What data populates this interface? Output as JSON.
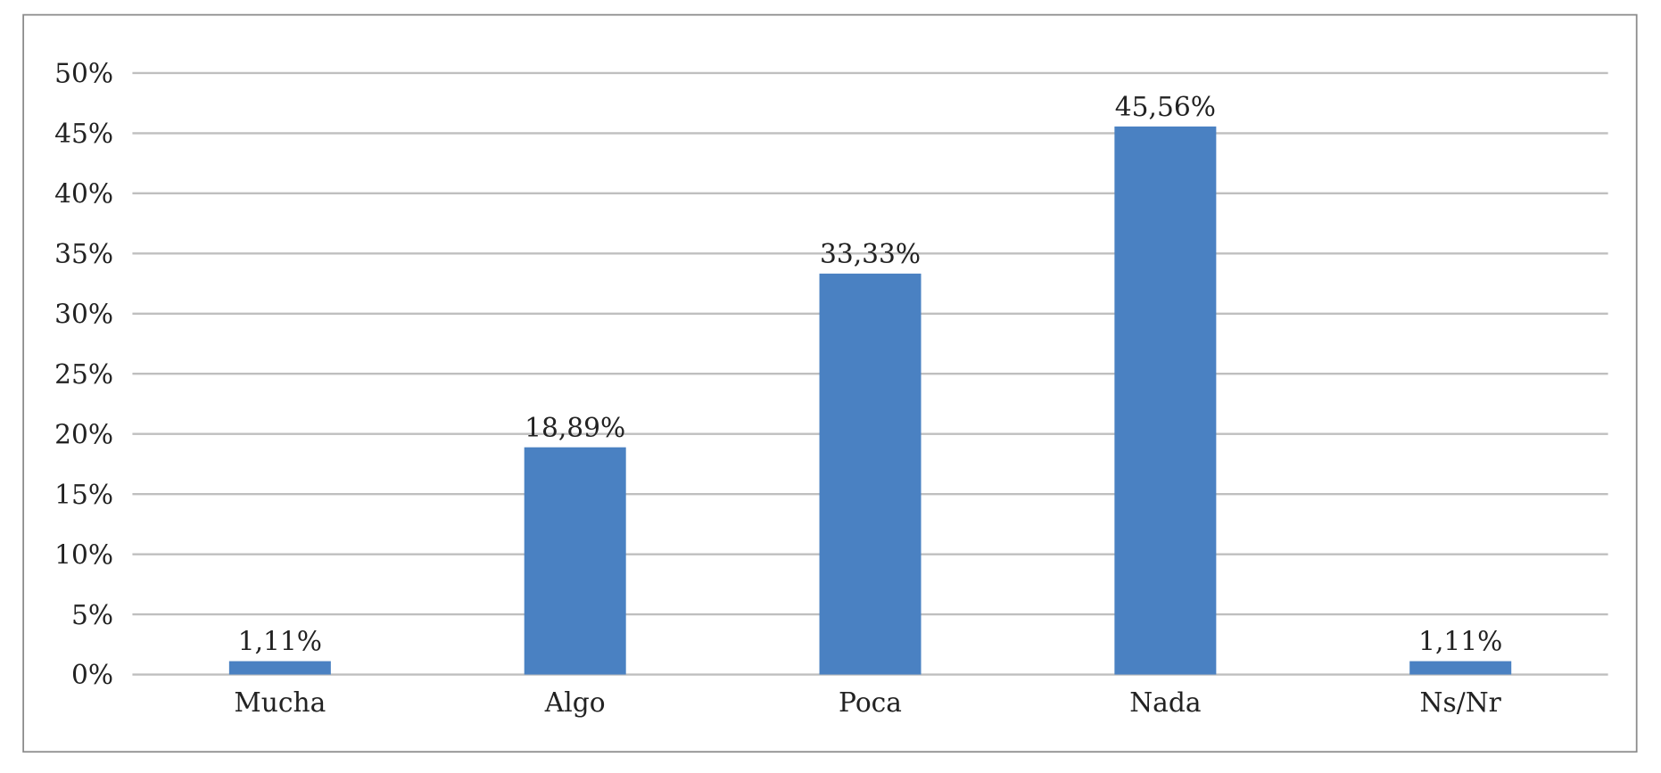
{
  "chart_data": {
    "type": "bar",
    "title": "",
    "xlabel": "",
    "ylabel": "",
    "categories": [
      "Mucha",
      "Algo",
      "Poca",
      "Nada",
      "Ns/Nr"
    ],
    "values": [
      1.11,
      18.89,
      33.33,
      45.56,
      1.11
    ],
    "data_labels": [
      "1,11%",
      "18,89%",
      "33,33%",
      "45,56%",
      "1,11%"
    ],
    "ylim": [
      0,
      50
    ],
    "yticks": [
      0,
      5,
      10,
      15,
      20,
      25,
      30,
      35,
      40,
      45,
      50
    ],
    "ytick_labels": [
      "0%",
      "5%",
      "10%",
      "15%",
      "20%",
      "25%",
      "30%",
      "35%",
      "40%",
      "45%",
      "50%"
    ],
    "grid": true,
    "legend": "none",
    "colors": {
      "bar": "#4a81c2",
      "grid": "#bfbfbf",
      "frame": "#8c8c8c"
    }
  }
}
